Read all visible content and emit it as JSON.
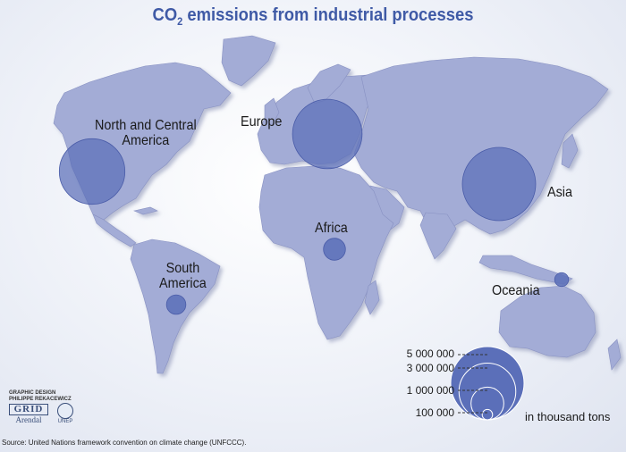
{
  "title": {
    "prefix": "CO",
    "subscript": "2",
    "suffix": " emissions from industrial processes"
  },
  "regions": [
    {
      "name_lines": [
        "North and Central",
        "America"
      ],
      "value": 4000000
    },
    {
      "name_lines": [
        "Europe"
      ],
      "value": 4500000
    },
    {
      "name_lines": [
        "Asia"
      ],
      "value": 5000000
    },
    {
      "name_lines": [
        "Africa"
      ],
      "value": 450000
    },
    {
      "name_lines": [
        "South",
        "America"
      ],
      "value": 350000
    },
    {
      "name_lines": [
        "Oceania"
      ],
      "value": 180000
    }
  ],
  "legend": {
    "values": [
      "5 000 000",
      "3 000 000",
      "1 000 000",
      "100 000"
    ],
    "unit": "in thousand tons"
  },
  "credits": {
    "line1": "GRAPHIC DESIGN",
    "line2": "PHILIPPE REKACEWICZ"
  },
  "logos": {
    "grid_top": "GRID",
    "grid_bottom": "Arendal",
    "unep": "UNEP"
  },
  "source": "Source: United Nations framework convention on climate change (UNFCCC).",
  "colors": {
    "land": "#a3acd6",
    "bubble": "#5b6fb9",
    "title": "#3f5aa6"
  }
}
